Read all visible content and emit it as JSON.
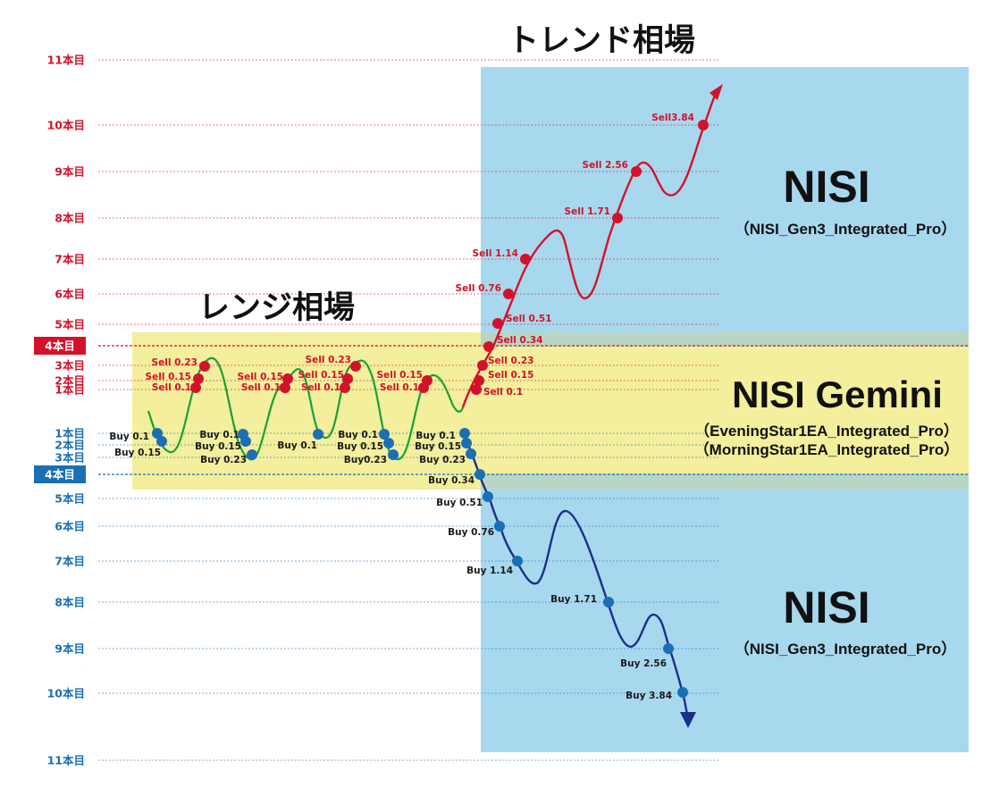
{
  "titles": {
    "trend": "トレンド相場",
    "range": "レンジ相場"
  },
  "nisi_top": {
    "name": "NISI",
    "sub": "（NISI_Gen3_Integrated_Pro）"
  },
  "nisi_bottom": {
    "name": "NISI",
    "sub": "（NISI_Gen3_Integrated_Pro）"
  },
  "gemini": {
    "name": "NISI Gemini",
    "sub1": "（EveningStar1EA_Integrated_Pro）",
    "sub2": "（MorningStar1EA_Integrated_Pro）"
  },
  "levels": {
    "sell": [
      "1本目",
      "2本目",
      "3本目",
      "4本目",
      "5本目",
      "6本目",
      "7本目",
      "8本目",
      "9本目",
      "10本目",
      "11本目"
    ],
    "buy": [
      "1本目",
      "2本目",
      "3本目",
      "4本目",
      "5本目",
      "6本目",
      "7本目",
      "8本目",
      "9本目",
      "10本目",
      "11本目"
    ]
  },
  "sell_labels": [
    "Sell 0.1",
    "Sell 0.15",
    "Sell 0.23",
    "Sell 0.34",
    "Sell 0.51",
    "Sell 0.76",
    "Sell 1.14",
    "Sell 1.71",
    "Sell 2.56",
    "Sell3.84"
  ],
  "buy_labels": [
    "Buy 0.1",
    "Buy 0.15",
    "Buy 0.23",
    "Buy 0.34",
    "Buy 0.51",
    "Buy 0.76",
    "Buy 1.14",
    "Buy 1.71",
    "Buy 2.56",
    "Buy 3.84"
  ],
  "range_labels": {
    "sell_a": [
      "Sell 0.1",
      "Sell 0.15",
      "Sell 0.23"
    ],
    "sell_b": [
      "Sell 0.1",
      "Sell 0.15"
    ],
    "sell_c": [
      "Sell 0.1",
      "Sell 0.15",
      "Sell 0.23"
    ],
    "sell_d": [
      "Sell 0.1",
      "Sell 0.15"
    ],
    "buy_a": [
      "Buy 0.1",
      "Buy 0.15"
    ],
    "buy_b": [
      "Buy 0.1",
      "Buy 0.15",
      "Buy 0.23"
    ],
    "buy_c": [
      "Buy 0.1"
    ],
    "buy_d": [
      "Buy 0.1",
      "Buy 0.15",
      "Buy0.23"
    ],
    "buy_e": [
      "Buy 0.1",
      "Buy 0.15",
      "Buy 0.23"
    ]
  },
  "colors": {
    "trend_zone": "#a8d8ee",
    "range_zone": "#f3ef9c",
    "overlap_zone": "#b9d6c4",
    "sell": "#d3122a",
    "buy": "#1a6fb5",
    "range_line": "#18a038",
    "sell_trend": "#d3122a",
    "buy_trend": "#1c2e8c"
  }
}
